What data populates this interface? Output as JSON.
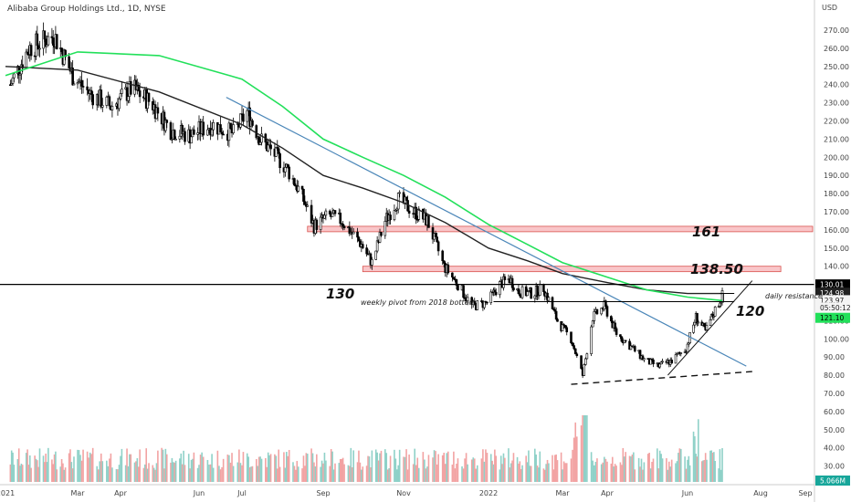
{
  "chart_data": {
    "type": "candlestick",
    "title": "Alibaba Group Holdings Ltd., 1D, NYSE",
    "currency": "USD",
    "y_ticks": [
      30,
      40,
      50,
      60,
      70,
      80,
      90,
      100,
      110,
      130,
      140,
      150,
      160,
      170,
      180,
      190,
      200,
      210,
      220,
      230,
      240,
      250,
      260,
      270
    ],
    "y_tick_labels": [
      "30.00",
      "40.00",
      "50.00",
      "60.00",
      "70.00",
      "80.00",
      "90.00",
      "100.00",
      "110.00",
      "130.00",
      "140.00",
      "150.00",
      "160.00",
      "170.00",
      "180.00",
      "190.00",
      "200.00",
      "210.00",
      "220.00",
      "230.00",
      "240.00",
      "250.00",
      "260.00",
      "270.00"
    ],
    "x_tick_labels": [
      "2021",
      "Mar",
      "Apr",
      "Jun",
      "Jul",
      "Sep",
      "Nov",
      "2022",
      "Mar",
      "Apr",
      "Jun",
      "Aug",
      "Sep"
    ],
    "price_tags": {
      "line_130": "130.01",
      "ma_black": "124.98",
      "last_price": "123.97",
      "countdown": "05:50:12",
      "ma_green": "121.10",
      "volume": "5.066M"
    },
    "annotations": {
      "level_130": "130",
      "level_120": "120",
      "level_161": "161",
      "level_138": "138.50",
      "pivot_note": "weekly pivot from 2018 bottom",
      "daily_resistance": "daily resistance"
    },
    "zones": [
      {
        "label": "161",
        "from": 159,
        "to": 162
      },
      {
        "label": "138.50",
        "from": 137,
        "to": 140
      }
    ],
    "horizontal_levels": [
      130,
      120
    ],
    "close_path": [
      [
        "2021-01-05",
        240
      ],
      [
        "2021-01-20",
        260
      ],
      [
        "2021-02-10",
        267
      ],
      [
        "2021-02-25",
        245
      ],
      [
        "2021-03-10",
        235
      ],
      [
        "2021-03-25",
        228
      ],
      [
        "2021-04-10",
        238
      ],
      [
        "2021-04-25",
        230
      ],
      [
        "2021-05-10",
        215
      ],
      [
        "2021-05-25",
        212
      ],
      [
        "2021-06-10",
        218
      ],
      [
        "2021-06-25",
        213
      ],
      [
        "2021-07-05",
        225
      ],
      [
        "2021-07-15",
        210
      ],
      [
        "2021-07-28",
        200
      ],
      [
        "2021-08-05",
        193
      ],
      [
        "2021-08-15",
        180
      ],
      [
        "2021-08-25",
        162
      ],
      [
        "2021-09-05",
        168
      ],
      [
        "2021-09-15",
        165
      ],
      [
        "2021-09-30",
        152
      ],
      [
        "2021-10-08",
        142
      ],
      [
        "2021-10-18",
        165
      ],
      [
        "2021-10-28",
        177
      ],
      [
        "2021-11-05",
        172
      ],
      [
        "2021-11-18",
        165
      ],
      [
        "2021-11-30",
        140
      ],
      [
        "2021-12-10",
        130
      ],
      [
        "2021-12-20",
        118
      ],
      [
        "2021-12-31",
        120
      ],
      [
        "2022-01-10",
        130
      ],
      [
        "2022-01-18",
        133
      ],
      [
        "2022-01-25",
        126
      ],
      [
        "2022-02-05",
        125
      ],
      [
        "2022-02-14",
        128
      ],
      [
        "2022-02-25",
        110
      ],
      [
        "2022-03-07",
        100
      ],
      [
        "2022-03-15",
        80
      ],
      [
        "2022-03-22",
        112
      ],
      [
        "2022-03-30",
        118
      ],
      [
        "2022-04-08",
        103
      ],
      [
        "2022-04-20",
        95
      ],
      [
        "2022-04-30",
        88
      ],
      [
        "2022-05-10",
        85
      ],
      [
        "2022-05-20",
        88
      ],
      [
        "2022-05-31",
        95
      ],
      [
        "2022-06-08",
        112
      ],
      [
        "2022-06-16",
        104
      ],
      [
        "2022-06-24",
        116
      ],
      [
        "2022-06-30",
        123.97
      ]
    ],
    "ma_black": [
      [
        "2021-01-01",
        250
      ],
      [
        "2021-03-01",
        248
      ],
      [
        "2021-05-01",
        236
      ],
      [
        "2021-07-01",
        218
      ],
      [
        "2021-08-01",
        205
      ],
      [
        "2021-09-01",
        190
      ],
      [
        "2021-10-01",
        183
      ],
      [
        "2021-11-01",
        175
      ],
      [
        "2021-12-01",
        164
      ],
      [
        "2022-01-01",
        150
      ],
      [
        "2022-02-01",
        143
      ],
      [
        "2022-03-01",
        136
      ],
      [
        "2022-04-01",
        131
      ],
      [
        "2022-05-01",
        127
      ],
      [
        "2022-06-01",
        125
      ],
      [
        "2022-06-30",
        124.98
      ]
    ],
    "ma_green": [
      [
        "2021-01-01",
        245
      ],
      [
        "2021-03-01",
        258
      ],
      [
        "2021-05-01",
        256
      ],
      [
        "2021-07-01",
        243
      ],
      [
        "2021-08-01",
        228
      ],
      [
        "2021-09-01",
        210
      ],
      [
        "2021-10-01",
        200
      ],
      [
        "2021-11-01",
        190
      ],
      [
        "2021-12-01",
        178
      ],
      [
        "2022-01-01",
        163
      ],
      [
        "2022-02-01",
        152
      ],
      [
        "2022-03-01",
        142
      ],
      [
        "2022-04-01",
        134
      ],
      [
        "2022-05-01",
        127
      ],
      [
        "2022-06-01",
        123
      ],
      [
        "2022-06-30",
        121.1
      ]
    ],
    "trendlines": {
      "blue_descending": [
        [
          "2021-06-20",
          233
        ],
        [
          "2022-07-20",
          85
        ]
      ],
      "dashed_support": [
        [
          "2022-03-07",
          75
        ],
        [
          "2022-07-25",
          82
        ]
      ],
      "rising_support": [
        [
          "2022-05-17",
          80
        ],
        [
          "2022-07-25",
          132
        ]
      ]
    },
    "colors": {
      "up_candle": "#ffffff",
      "down_candle": "#000000",
      "ma_green": "#22e05a",
      "ma_black": "#222222",
      "trend_blue": "#4a86b8",
      "zone_fill": "#f7b8bb",
      "zone_stroke": "#d9534f",
      "volume_up": "#8fd1c8",
      "volume_down": "#f2a3a3"
    }
  }
}
